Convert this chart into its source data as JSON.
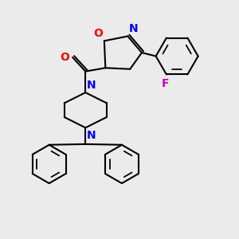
{
  "bg_color": "#ebebeb",
  "bond_color": "#000000",
  "N_color": "#0000ff",
  "O_color": "#ff0000",
  "F_color": "#cc00cc",
  "line_width": 1.5,
  "font_size_atom": 9,
  "fig_size": [
    3.0,
    3.0
  ],
  "dpi": 100,
  "xlim": [
    0,
    10
  ],
  "ylim": [
    0,
    10
  ]
}
